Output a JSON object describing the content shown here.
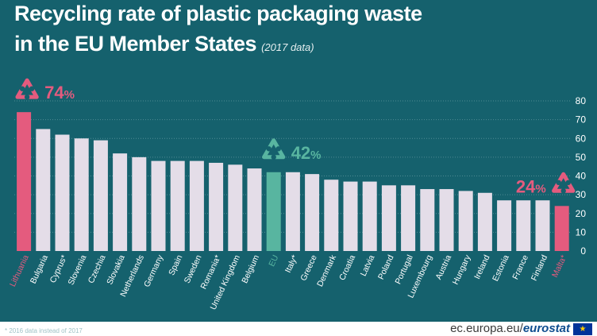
{
  "header": {
    "title_line1": "Recycling rate of plastic packaging waste",
    "title_line2": "in the EU Member States",
    "subtitle": "(2017 data)"
  },
  "footer": {
    "footnote": "* 2016 data instead of 2017",
    "source_prefix": "ec.europa.eu/",
    "source_brand": "eurostat",
    "flag_glyph": "★"
  },
  "colors": {
    "background": "#15616d",
    "bar_default": "#e4dde8",
    "bar_extreme": "#e45b7e",
    "bar_eu": "#58b5a0",
    "axis_text": "#ffffff",
    "grid": "#4f8a93"
  },
  "chart_data": {
    "type": "bar",
    "title": "Recycling rate of plastic packaging waste in the EU Member States",
    "subtitle": "(2017 data)",
    "xlabel": "",
    "ylabel": "",
    "ylim": [
      0,
      80
    ],
    "yticks": [
      0,
      10,
      20,
      30,
      40,
      50,
      60,
      70,
      80
    ],
    "y_axis_side": "right",
    "grid": true,
    "categories": [
      "Lithuania",
      "Bulgaria",
      "Cyprus*",
      "Slovenia",
      "Czechia",
      "Slovakia",
      "Netherlands",
      "Germany",
      "Spain",
      "Sweden",
      "Romania*",
      "United Kingdom",
      "Belgium",
      "EU",
      "Italy*",
      "Greece",
      "Denmark",
      "Croatia",
      "Latvia",
      "Poland",
      "Portugal",
      "Luxembourg",
      "Austria",
      "Hungary",
      "Ireland",
      "Estonia",
      "France",
      "Finland",
      "Malta*"
    ],
    "values": [
      74,
      65,
      62,
      60,
      59,
      52,
      50,
      48,
      48,
      48,
      47,
      46,
      44,
      42,
      42,
      41,
      38,
      37,
      37,
      35,
      35,
      33,
      33,
      32,
      31,
      27,
      27,
      27,
      24
    ],
    "highlights": {
      "Lithuania": "max",
      "EU": "eu",
      "Malta*": "min"
    },
    "annotations": [
      {
        "category": "Lithuania",
        "label": "74",
        "unit": "%",
        "icon": "recycle-icon"
      },
      {
        "category": "EU",
        "label": "42",
        "unit": "%",
        "icon": "recycle-icon"
      },
      {
        "category": "Malta*",
        "label": "24",
        "unit": "%",
        "icon": "recycle-icon"
      }
    ]
  }
}
